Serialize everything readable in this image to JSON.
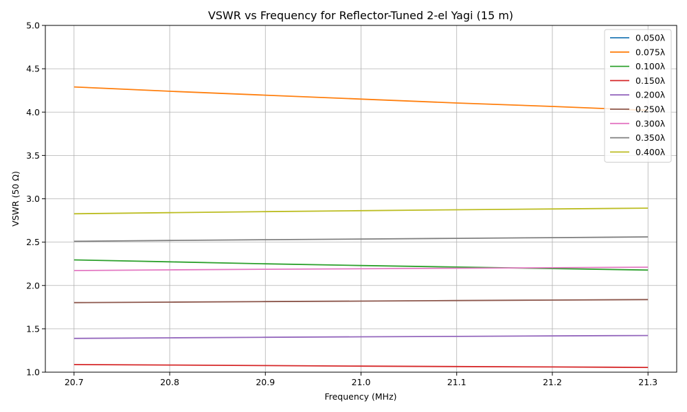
{
  "chart_data": {
    "type": "line",
    "title": "VSWR vs Frequency for Reflector-Tuned 2-el Yagi (15 m)",
    "xlabel": "Frequency (MHz)",
    "ylabel": "VSWR (50 Ω)",
    "xlim": [
      20.67,
      21.33
    ],
    "ylim": [
      1.0,
      5.0
    ],
    "x_ticks": [
      "20.7",
      "20.8",
      "20.9",
      "21.0",
      "21.1",
      "21.2",
      "21.3"
    ],
    "y_ticks": [
      "1.0",
      "1.5",
      "2.0",
      "2.5",
      "3.0",
      "3.5",
      "4.0",
      "4.5",
      "5.0"
    ],
    "grid": true,
    "legend_position": "top-right",
    "x": [
      20.7,
      20.8,
      20.9,
      21.0,
      21.1,
      21.2,
      21.3
    ],
    "series": [
      {
        "name": "0.050λ",
        "color": "#1f77b4",
        "values": [
          null,
          null,
          null,
          null,
          null,
          null,
          null
        ]
      },
      {
        "name": "0.075λ",
        "color": "#ff7f0e",
        "values": [
          4.29,
          4.24,
          4.195,
          4.15,
          4.105,
          4.065,
          4.02
        ]
      },
      {
        "name": "0.100λ",
        "color": "#2ca02c",
        "values": [
          2.295,
          2.273,
          2.25,
          2.23,
          2.213,
          2.195,
          2.178
        ]
      },
      {
        "name": "0.150λ",
        "color": "#d62728",
        "values": [
          1.088,
          1.082,
          1.076,
          1.07,
          1.065,
          1.06,
          1.055
        ]
      },
      {
        "name": "0.200λ",
        "color": "#9467bd",
        "values": [
          1.39,
          1.396,
          1.402,
          1.408,
          1.413,
          1.418,
          1.423
        ]
      },
      {
        "name": "0.250λ",
        "color": "#8c564b",
        "values": [
          1.802,
          1.808,
          1.814,
          1.82,
          1.826,
          1.832,
          1.837
        ]
      },
      {
        "name": "0.300λ",
        "color": "#e377c2",
        "values": [
          2.172,
          2.18,
          2.187,
          2.193,
          2.199,
          2.205,
          2.211
        ]
      },
      {
        "name": "0.350λ",
        "color": "#7f7f7f",
        "values": [
          2.51,
          2.519,
          2.528,
          2.536,
          2.544,
          2.552,
          2.56
        ]
      },
      {
        "name": "0.400λ",
        "color": "#bcbd22",
        "values": [
          2.827,
          2.84,
          2.852,
          2.863,
          2.873,
          2.883,
          2.892
        ]
      }
    ]
  }
}
